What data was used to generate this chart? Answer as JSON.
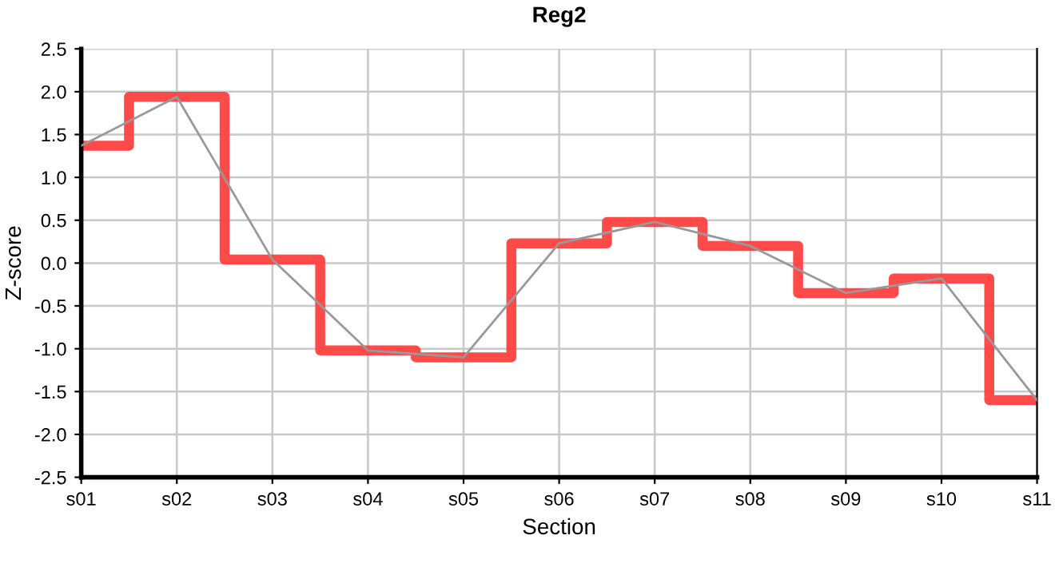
{
  "chart_data": {
    "type": "line",
    "title": "Reg2",
    "xlabel": "Section",
    "ylabel": "Z-score",
    "categories": [
      "s01",
      "s02",
      "s03",
      "s04",
      "s05",
      "s06",
      "s07",
      "s08",
      "s09",
      "s10",
      "s11"
    ],
    "series": [
      {
        "type": "step",
        "color": "#ff4040",
        "values": [
          1.37,
          1.94,
          0.04,
          -1.02,
          -1.1,
          0.23,
          0.48,
          0.2,
          -0.35,
          -0.18,
          -1.6
        ]
      },
      {
        "color": "#999999",
        "values": [
          1.37,
          1.94,
          0.04,
          -1.02,
          -1.1,
          0.23,
          0.48,
          0.2,
          -0.35,
          -0.18,
          -1.6
        ]
      }
    ],
    "ylim": [
      -2.5,
      2.5
    ],
    "yticks": [
      {
        "value": -2.5,
        "label": "-2.5"
      },
      {
        "value": -2.0,
        "label": "-2.0"
      },
      {
        "value": -1.5,
        "label": "-1.5"
      },
      {
        "value": -1.0,
        "label": "-1.0"
      },
      {
        "value": -0.5,
        "label": "-0.5"
      },
      {
        "value": 0.0,
        "label": "0.0"
      },
      {
        "value": 0.5,
        "label": "0.5"
      },
      {
        "value": 1.0,
        "label": "1.0"
      },
      {
        "value": 1.5,
        "label": "1.5"
      },
      {
        "value": 2.0,
        "label": "2.0"
      },
      {
        "value": 2.5,
        "label": "2.5"
      }
    ],
    "grid": true,
    "legend": false
  }
}
